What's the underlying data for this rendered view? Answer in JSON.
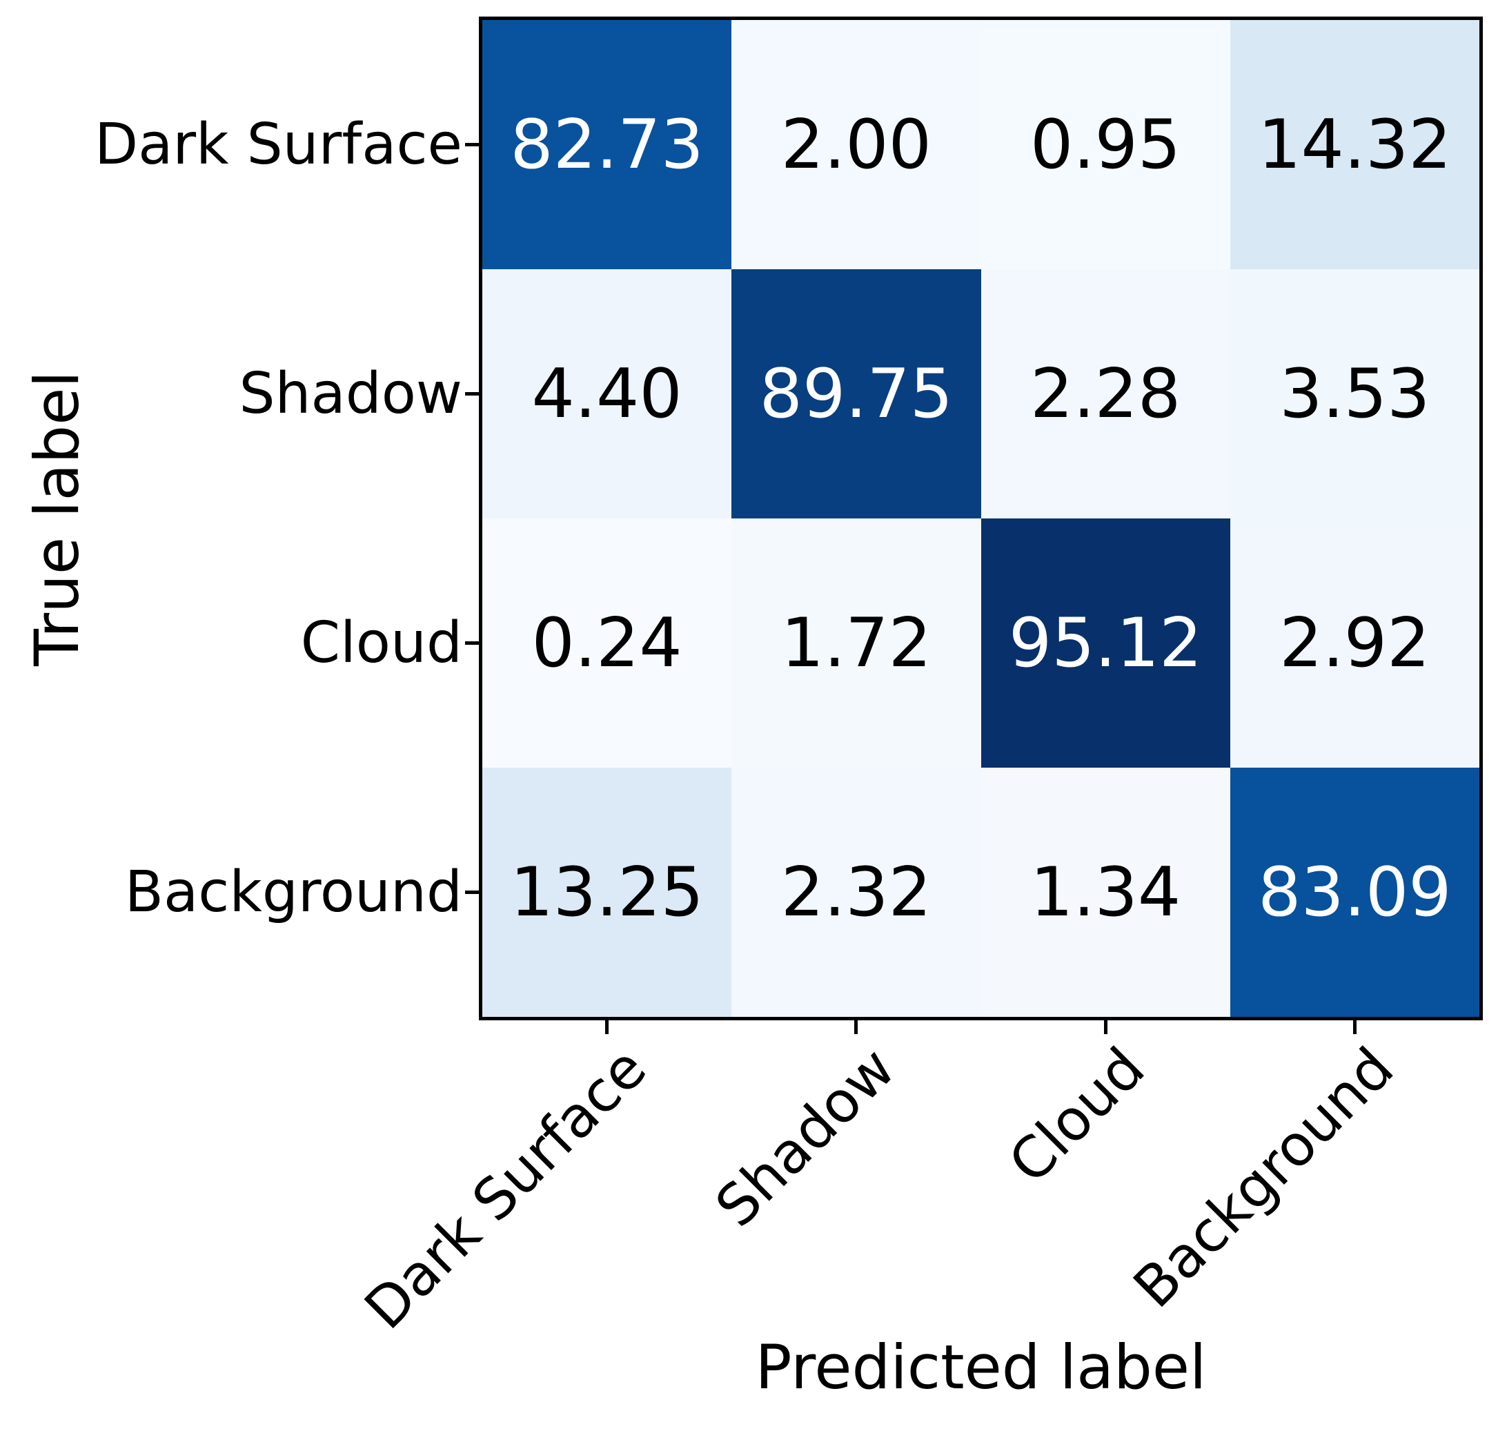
{
  "figure": {
    "background": "#ffffff",
    "axis_color": "#000000"
  },
  "chart_data": {
    "type": "heatmap",
    "subtype": "confusion-matrix",
    "title": "",
    "xlabel": "Predicted label",
    "ylabel": "True label",
    "categories": [
      "Dark Surface",
      "Shadow",
      "Cloud",
      "Background"
    ],
    "rows": [
      {
        "label": "Dark Surface",
        "values": [
          82.73,
          2.0,
          0.95,
          14.32
        ]
      },
      {
        "label": "Shadow",
        "values": [
          4.4,
          89.75,
          2.28,
          3.53
        ]
      },
      {
        "label": "Cloud",
        "values": [
          0.24,
          1.72,
          95.12,
          2.92
        ]
      },
      {
        "label": "Background",
        "values": [
          13.25,
          2.32,
          1.34,
          83.09
        ]
      }
    ],
    "display_values": [
      [
        "82.73",
        "2.00",
        "0.95",
        "14.32"
      ],
      [
        "4.40",
        "89.75",
        "2.28",
        "3.53"
      ],
      [
        "0.24",
        "1.72",
        "95.12",
        "2.92"
      ],
      [
        "13.25",
        "2.32",
        "1.34",
        "83.09"
      ]
    ],
    "colormap": "Blues",
    "vmin": 0.24,
    "vmax": 95.12,
    "legend": "none",
    "grid": "off",
    "cell_colors": [
      [
        "#09529d",
        "#f3f9fe",
        "#f5fafe",
        "#d9e8f5"
      ],
      [
        "#eef5fc",
        "#083f81",
        "#f3f8fe",
        "#f0f7fd"
      ],
      [
        "#f7fbff",
        "#f4f9fe",
        "#08306b",
        "#f1f7fd"
      ],
      [
        "#dce9f6",
        "#f3f8fe",
        "#f5f9fe",
        "#08519c"
      ]
    ],
    "cell_text_colors": [
      [
        "#ffffff",
        "#000000",
        "#000000",
        "#000000"
      ],
      [
        "#000000",
        "#ffffff",
        "#000000",
        "#000000"
      ],
      [
        "#000000",
        "#000000",
        "#ffffff",
        "#000000"
      ],
      [
        "#000000",
        "#000000",
        "#000000",
        "#ffffff"
      ]
    ]
  }
}
